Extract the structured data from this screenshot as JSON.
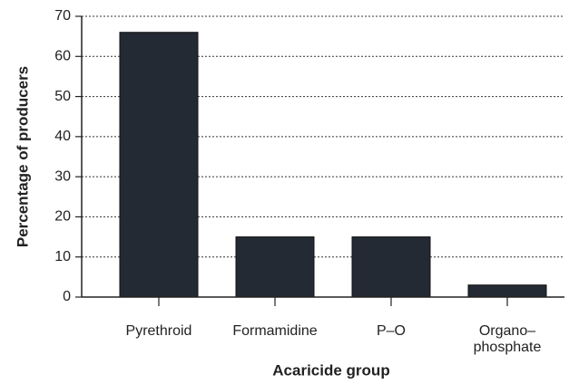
{
  "chart_data": {
    "type": "bar",
    "xlabel": "Acaricide group",
    "ylabel": "Percentage of producers",
    "categories": [
      "Pyrethroid",
      "Formamidine",
      "P–O",
      "Organo–\nphosphate"
    ],
    "values": [
      66,
      15,
      15,
      3
    ],
    "color": "#232a33",
    "ylim": [
      0,
      70
    ],
    "yticks": [
      0,
      10,
      20,
      30,
      40,
      50,
      60,
      70
    ],
    "grid": true
  }
}
